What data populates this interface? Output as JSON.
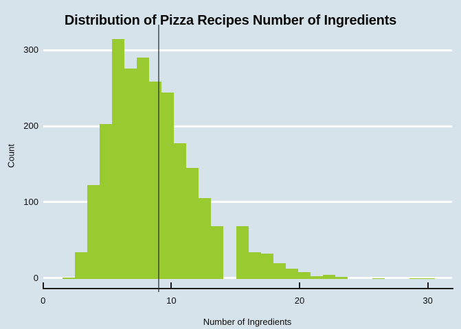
{
  "chart_data": {
    "type": "histogram",
    "title": "Distribution of Pizza Recipes Number of Ingredients",
    "xlabel": "Number of Ingredients",
    "ylabel": "Count",
    "x_ticks": [
      0,
      10,
      20,
      30
    ],
    "y_ticks": [
      0,
      100,
      200,
      300
    ],
    "xlim": [
      0,
      31.9
    ],
    "ylim": [
      0,
      330
    ],
    "grid": "horizontal-white-lines",
    "legend": "none",
    "bins": {
      "start": 1.5,
      "width": 0.9677,
      "counts": [
        2,
        35,
        124,
        204,
        316,
        277,
        292,
        260,
        246,
        179,
        146,
        107,
        70,
        0,
        70,
        35,
        33,
        21,
        14,
        9,
        4,
        5,
        3,
        0,
        0,
        1,
        0,
        0,
        1,
        1,
        0
      ]
    },
    "vline": {
      "x": 9
    },
    "colors": {
      "background": "#d6e3ea",
      "bar": "#99ca30",
      "gridline": "#ffffff",
      "axis": "#1a1a1a",
      "vline": "rgba(35,44,50,0.62)",
      "text": "#0b0b0b"
    }
  }
}
